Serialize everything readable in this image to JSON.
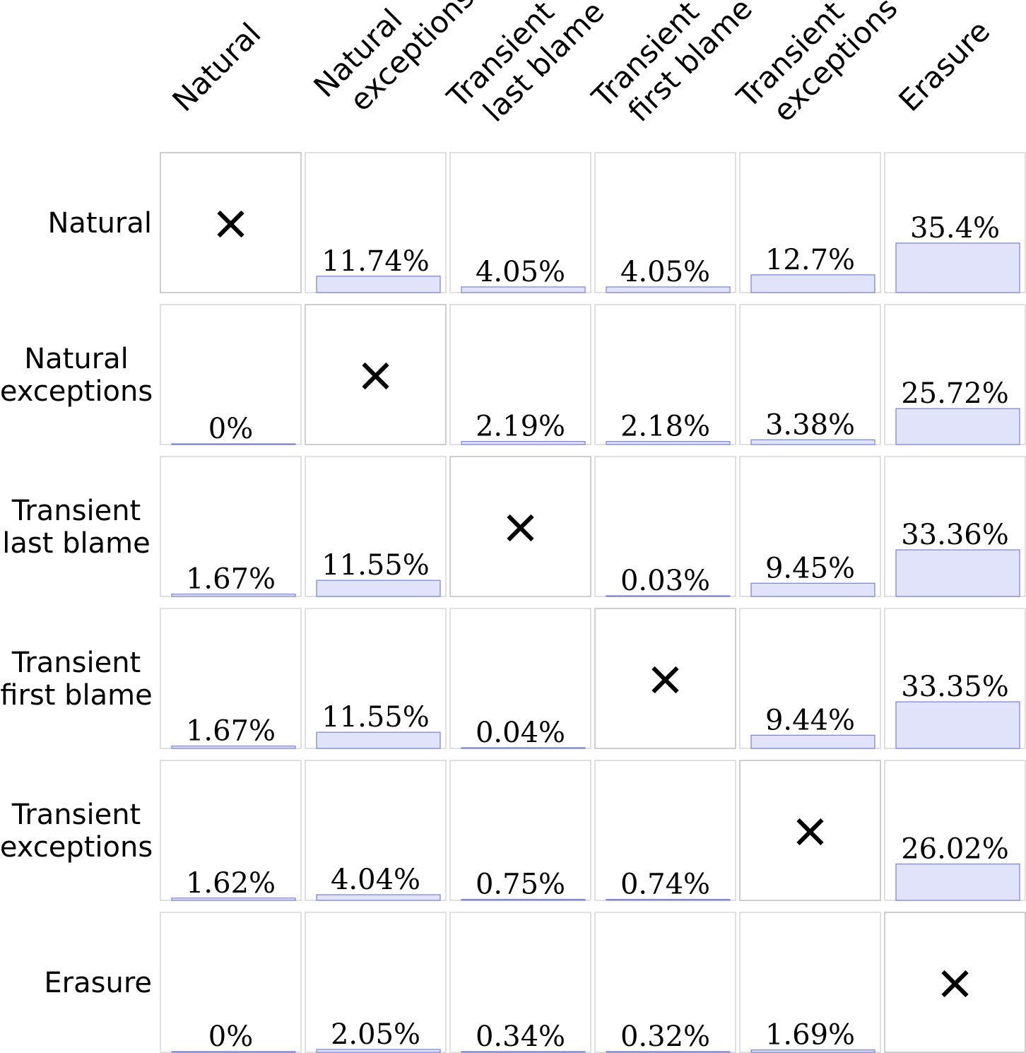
{
  "chart_data": {
    "type": "table",
    "columns": [
      [
        "Natural"
      ],
      [
        "Natural",
        "exceptions"
      ],
      [
        "Transient",
        "last blame"
      ],
      [
        "Transient",
        "first blame"
      ],
      [
        "Transient",
        "exceptions"
      ],
      [
        "Erasure"
      ]
    ],
    "rows": [
      [
        "Natural"
      ],
      [
        "Natural",
        "exceptions"
      ],
      [
        "Transient",
        "last blame"
      ],
      [
        "Transient",
        "first blame"
      ],
      [
        "Transient",
        "exceptions"
      ],
      [
        "Erasure"
      ]
    ],
    "cells": [
      [
        null,
        11.74,
        4.05,
        4.05,
        12.7,
        35.4
      ],
      [
        0,
        null,
        2.19,
        2.18,
        3.38,
        25.72
      ],
      [
        1.67,
        11.55,
        null,
        0.03,
        9.45,
        33.36
      ],
      [
        1.67,
        11.55,
        0.04,
        null,
        9.44,
        33.35
      ],
      [
        1.62,
        4.04,
        0.75,
        0.74,
        null,
        26.02
      ],
      [
        0,
        2.05,
        0.34,
        0.32,
        1.69,
        null
      ]
    ],
    "value_suffix": "%",
    "diagonal_marker": "×",
    "bar_fill": "#e0e3fa",
    "bar_stroke": "#7a80cc"
  }
}
